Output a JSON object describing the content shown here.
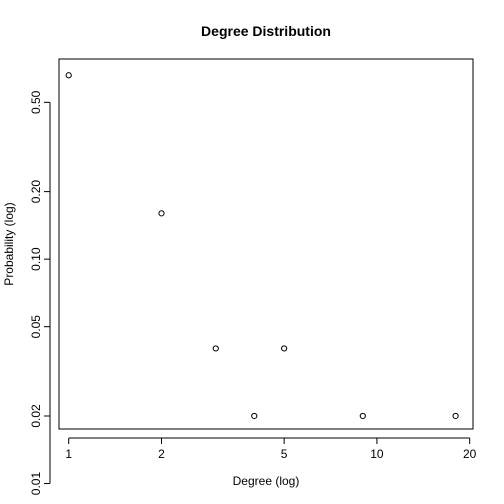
{
  "chart_data": {
    "type": "scatter",
    "title": "Degree Distribution",
    "xlabel": "Degree (log)",
    "ylabel": "Probability (log)",
    "x_scale": "log",
    "y_scale": "log",
    "xlim": [
      0.93,
      20.5
    ],
    "ylim": [
      0.0175,
      0.78
    ],
    "x_ticks": [
      1,
      2,
      5,
      10,
      20
    ],
    "x_tick_labels": [
      "1",
      "2",
      "5",
      "10",
      "20"
    ],
    "y_ticks": [
      0.01,
      0.02,
      0.05,
      0.1,
      0.2,
      0.5
    ],
    "y_tick_labels": [
      "0.01",
      "0.02",
      "0.05",
      "0.10",
      "0.20",
      "0.50"
    ],
    "grid": false,
    "legend": "none",
    "marker": "open-circle",
    "series": [
      {
        "x": [
          1,
          2,
          3,
          4,
          5,
          9,
          18
        ],
        "y": [
          0.66,
          0.16,
          0.04,
          0.02,
          0.04,
          0.02,
          0.02
        ]
      }
    ]
  }
}
